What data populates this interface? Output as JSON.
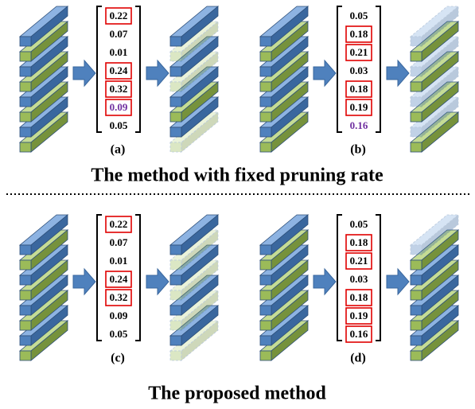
{
  "panels": [
    {
      "label": "(a)",
      "values": [
        0.22,
        0.07,
        0.01,
        0.24,
        0.32,
        0.09,
        0.05
      ],
      "boxed_indices": [
        0,
        3,
        4,
        5
      ],
      "purple_indices": [
        5
      ]
    },
    {
      "label": "(b)",
      "values": [
        0.05,
        0.18,
        0.21,
        0.03,
        0.18,
        0.19,
        0.16
      ],
      "boxed_indices": [
        1,
        2,
        4,
        5
      ],
      "purple_indices": [
        6
      ]
    },
    {
      "label": "(c)",
      "values": [
        0.22,
        0.07,
        0.01,
        0.24,
        0.32,
        0.09,
        0.05
      ],
      "boxed_indices": [
        0,
        3,
        4
      ],
      "purple_indices": []
    },
    {
      "label": "(d)",
      "values": [
        0.05,
        0.18,
        0.21,
        0.03,
        0.18,
        0.19,
        0.16
      ],
      "boxed_indices": [
        1,
        2,
        4,
        5,
        6
      ],
      "purple_indices": []
    }
  ],
  "titles": [
    "The method with fixed pruning rate",
    "The proposed method"
  ]
}
